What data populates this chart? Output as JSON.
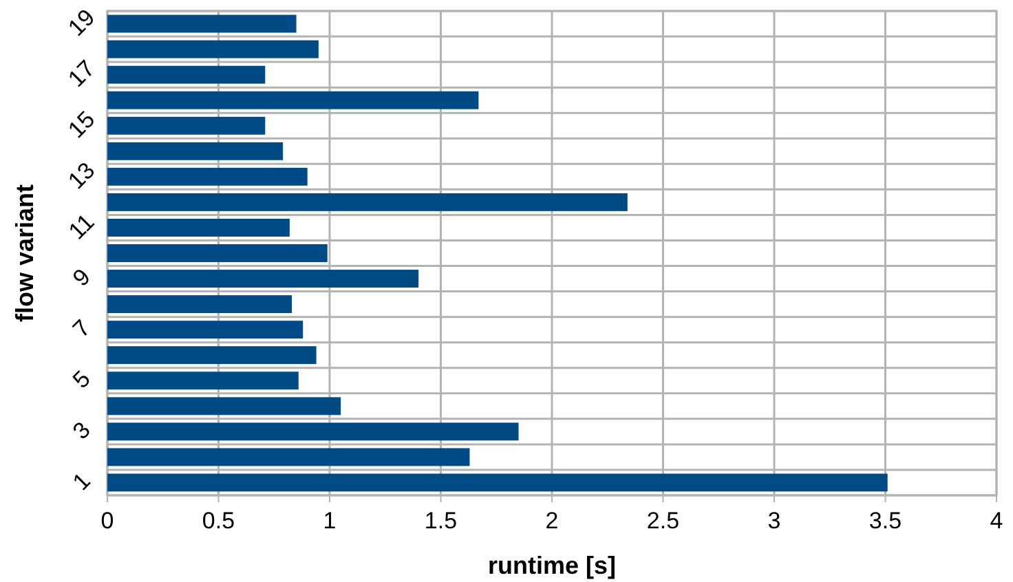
{
  "chart_data": {
    "type": "bar",
    "orientation": "horizontal",
    "xlabel": "runtime [s]",
    "ylabel": "flow variant",
    "categories": [
      "19",
      null,
      "17",
      null,
      "15",
      null,
      "13",
      null,
      "11",
      null,
      "9",
      null,
      "7",
      null,
      "5",
      null,
      "3",
      null,
      "1"
    ],
    "values": [
      0.85,
      0.95,
      0.71,
      1.67,
      0.71,
      0.79,
      0.9,
      2.34,
      0.82,
      0.99,
      1.4,
      0.83,
      0.88,
      0.94,
      0.86,
      1.05,
      1.85,
      1.63,
      3.51
    ],
    "color": "#004a86",
    "xlim": [
      0,
      4
    ],
    "xticks": [
      0,
      0.5,
      1,
      1.5,
      2,
      2.5,
      3,
      3.5,
      4
    ],
    "grid": true
  }
}
